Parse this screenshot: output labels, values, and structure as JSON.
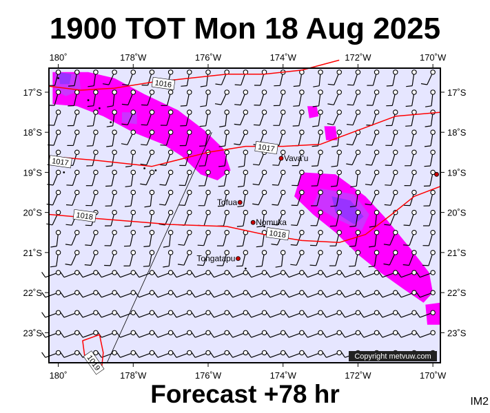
{
  "title": "1900 TOT Mon 18 Aug 2025",
  "subtitle": "Forecast +78 hr",
  "panel_id": "IM2",
  "copyright": "Copyright metvuw.com",
  "colors": {
    "background": "#e6e6ff",
    "rain_light": "#ff00ff",
    "rain_medium": "#cc33ff",
    "rain_heavy": "#9933ff",
    "isobar": "#ff0000",
    "town_marker": "#cc0000"
  },
  "map": {
    "lon_range_deg_east": [
      179.75,
      190.2
    ],
    "lat_range_deg": [
      -16.4,
      -23.75
    ],
    "lon_ticks": [
      {
        "lon": 180,
        "label": "180˚"
      },
      {
        "lon": 182,
        "label": "178˚W"
      },
      {
        "lon": 184,
        "label": "176˚W"
      },
      {
        "lon": 186,
        "label": "174˚W"
      },
      {
        "lon": 188,
        "label": "172˚W"
      },
      {
        "lon": 190,
        "label": "170˚W"
      }
    ],
    "lat_ticks": [
      {
        "lat": -17,
        "label": "17˚S"
      },
      {
        "lat": -18,
        "label": "18˚S"
      },
      {
        "lat": -19,
        "label": "19˚S"
      },
      {
        "lat": -20,
        "label": "20˚S"
      },
      {
        "lat": -21,
        "label": "21˚S"
      },
      {
        "lat": -22,
        "label": "22˚S"
      },
      {
        "lat": -23,
        "label": "23˚S"
      }
    ],
    "places": [
      {
        "name": "Vava'u",
        "lon": 185.95,
        "lat": -18.65
      },
      {
        "name": "Tofua",
        "lon": 184.85,
        "lat": -19.75
      },
      {
        "name": "Nomuka",
        "lon": 185.2,
        "lat": -20.25
      },
      {
        "name": "Tongatapu",
        "lon": 184.8,
        "lat": -21.15
      },
      {
        "name": "",
        "lon": 190.1,
        "lat": -19.05
      }
    ],
    "isobars": [
      {
        "label": "1016",
        "label_at": [
          182.55,
          -16.75
        ],
        "points": [
          [
            179.75,
            -16.85
          ],
          [
            180.6,
            -16.95
          ],
          [
            181.5,
            -16.9
          ],
          [
            182.5,
            -16.75
          ],
          [
            183.5,
            -16.65
          ],
          [
            184.5,
            -16.55
          ],
          [
            185.5,
            -16.55
          ],
          [
            186.5,
            -16.45
          ],
          [
            187.5,
            -16.2
          ]
        ]
      },
      {
        "label": "1017",
        "label_at": [
          179.8,
          -18.7
        ],
        "points": [
          [
            179.75,
            -18.6
          ],
          [
            181,
            -18.7
          ],
          [
            182.5,
            -18.85
          ],
          [
            184,
            -18.5
          ],
          [
            185,
            -18.35
          ],
          [
            186,
            -18.35
          ],
          [
            187,
            -18.3
          ],
          [
            188,
            -17.95
          ],
          [
            189,
            -17.6
          ],
          [
            190.2,
            -17.5
          ]
        ]
      },
      {
        "label": "1017",
        "label_at": [
          185.3,
          -18.35
        ],
        "points": []
      },
      {
        "label": "1018",
        "label_at": [
          180.45,
          -20.05
        ],
        "points": [
          [
            179.75,
            -20.05
          ],
          [
            181,
            -20.15
          ],
          [
            183,
            -20.3
          ],
          [
            184.5,
            -20.35
          ],
          [
            185.5,
            -20.55
          ],
          [
            186.5,
            -20.7
          ],
          [
            187.5,
            -20.75
          ],
          [
            188.2,
            -20.55
          ],
          [
            188.9,
            -20.05
          ],
          [
            189.5,
            -19.6
          ],
          [
            190.2,
            -19.35
          ]
        ]
      },
      {
        "label": "1018",
        "label_at": [
          185.6,
          -20.5
        ],
        "points": []
      },
      {
        "label": "1019",
        "label_at": [
          180.8,
          -23.55
        ],
        "points": [
          [
            181.15,
            -23.95
          ],
          [
            180.7,
            -23.55
          ],
          [
            180.65,
            -23.2
          ],
          [
            181.1,
            -23.05
          ],
          [
            181.2,
            -23.5
          ],
          [
            181.15,
            -23.95
          ]
        ]
      }
    ],
    "rain_areas": [
      {
        "level": "light",
        "points": [
          [
            179.85,
            -16.5
          ],
          [
            180.8,
            -16.5
          ],
          [
            181.5,
            -16.65
          ],
          [
            182.3,
            -17.05
          ],
          [
            183.2,
            -17.45
          ],
          [
            183.9,
            -17.95
          ],
          [
            184.4,
            -18.4
          ],
          [
            184.6,
            -18.95
          ],
          [
            184.25,
            -19.2
          ],
          [
            183.8,
            -19.05
          ],
          [
            183.3,
            -18.6
          ],
          [
            182.8,
            -18.3
          ],
          [
            182.0,
            -18.0
          ],
          [
            181.2,
            -17.6
          ],
          [
            180.5,
            -17.35
          ],
          [
            179.85,
            -17.3
          ]
        ]
      },
      {
        "level": "medium",
        "points": [
          [
            179.9,
            -16.5
          ],
          [
            180.55,
            -16.55
          ],
          [
            180.6,
            -16.95
          ],
          [
            180.2,
            -17.1
          ],
          [
            179.9,
            -16.95
          ]
        ]
      },
      {
        "level": "heavy",
        "points": [
          [
            180.0,
            -16.5
          ],
          [
            180.35,
            -16.55
          ],
          [
            180.3,
            -16.8
          ],
          [
            180.05,
            -16.8
          ]
        ]
      },
      {
        "level": "medium",
        "points": [
          [
            181.7,
            -17.5
          ],
          [
            182.1,
            -17.5
          ],
          [
            182.1,
            -17.8
          ],
          [
            181.7,
            -17.75
          ]
        ]
      },
      {
        "level": "light",
        "points": [
          [
            186.5,
            -19.0
          ],
          [
            187.4,
            -19.05
          ],
          [
            188.2,
            -19.6
          ],
          [
            188.7,
            -20.1
          ],
          [
            189.4,
            -20.9
          ],
          [
            189.9,
            -21.5
          ],
          [
            190.0,
            -22.0
          ],
          [
            189.75,
            -22.25
          ],
          [
            189.2,
            -21.9
          ],
          [
            188.6,
            -21.5
          ],
          [
            188.0,
            -21.05
          ],
          [
            187.4,
            -20.5
          ],
          [
            186.8,
            -20.05
          ],
          [
            186.3,
            -19.6
          ]
        ]
      },
      {
        "level": "medium",
        "points": [
          [
            187.0,
            -19.4
          ],
          [
            187.9,
            -19.55
          ],
          [
            188.3,
            -20.05
          ],
          [
            188.1,
            -20.45
          ],
          [
            187.4,
            -20.15
          ],
          [
            186.8,
            -19.8
          ]
        ]
      },
      {
        "level": "heavy",
        "points": [
          [
            187.3,
            -19.6
          ],
          [
            187.8,
            -19.7
          ],
          [
            188.15,
            -20.1
          ],
          [
            187.9,
            -20.3
          ],
          [
            187.4,
            -20.0
          ]
        ]
      },
      {
        "level": "light",
        "points": [
          [
            186.65,
            -17.35
          ],
          [
            186.9,
            -17.35
          ],
          [
            186.95,
            -17.6
          ],
          [
            186.7,
            -17.65
          ]
        ]
      },
      {
        "level": "light",
        "points": [
          [
            187.1,
            -17.85
          ],
          [
            187.4,
            -17.85
          ],
          [
            187.45,
            -18.2
          ],
          [
            187.15,
            -18.2
          ]
        ]
      },
      {
        "level": "light",
        "points": [
          [
            189.8,
            -22.3
          ],
          [
            190.2,
            -22.25
          ],
          [
            190.2,
            -22.8
          ],
          [
            189.85,
            -22.8
          ]
        ]
      }
    ],
    "track_line": [
      [
        184.1,
        -18.0
      ],
      [
        181.3,
        -23.95
      ]
    ]
  }
}
